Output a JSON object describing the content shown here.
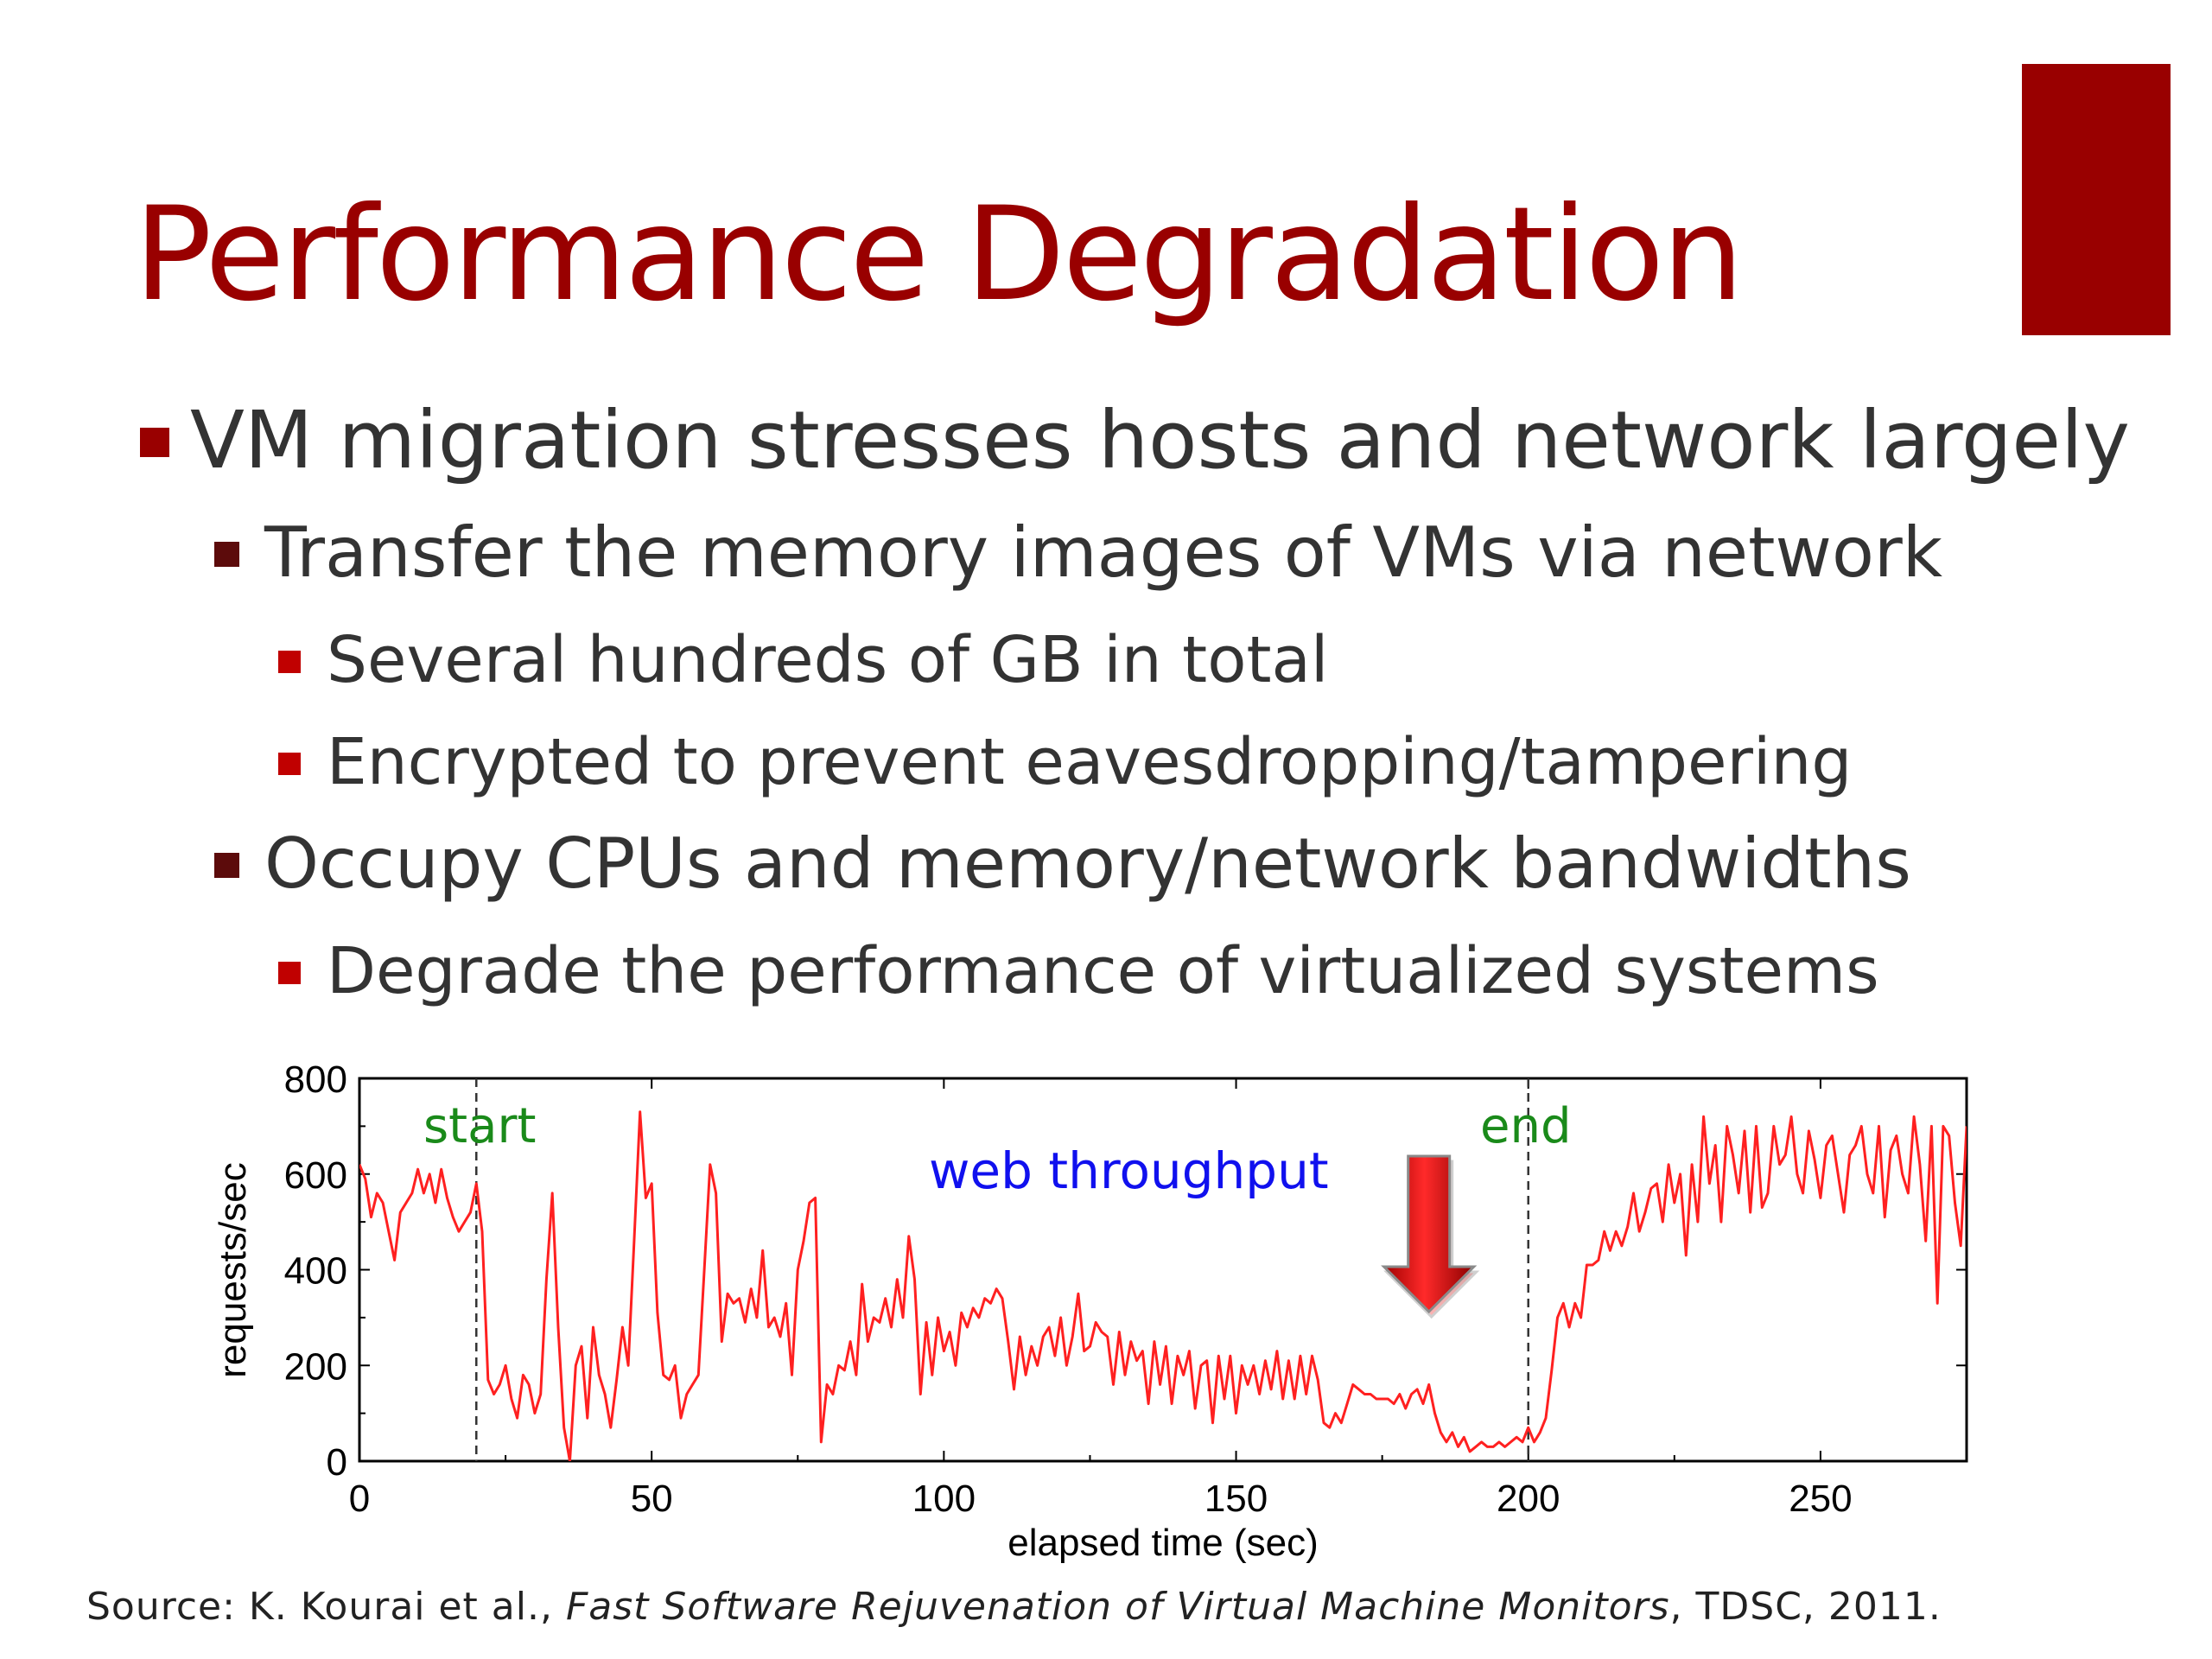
{
  "slide": {
    "title": "Performance Degradation",
    "accent_color": "#990000",
    "bullets": [
      {
        "level": 1,
        "text": "VM migration stresses hosts and network largely"
      },
      {
        "level": 2,
        "text": "Transfer the memory images of VMs via network"
      },
      {
        "level": 3,
        "text": "Several hundreds of GB in total"
      },
      {
        "level": 3,
        "text": "Encrypted to prevent eavesdropping/tampering"
      },
      {
        "level": 2,
        "text": "Occupy CPUs and memory/network bandwidths"
      },
      {
        "level": 3,
        "text": "Degrade the performance of virtualized systems"
      }
    ],
    "source": {
      "prefix": "Source: K. Kourai et al., ",
      "title": "Fast Software Rejuvenation of Virtual Machine Monitors",
      "suffix": ", TDSC, 2011."
    }
  },
  "chart_data": {
    "type": "line",
    "xlabel": "elapsed time (sec)",
    "ylabel": "requests/sec",
    "xlim": [
      0,
      275
    ],
    "ylim": [
      0,
      800
    ],
    "xticks": [
      0,
      50,
      100,
      150,
      200,
      250
    ],
    "yticks": [
      0,
      200,
      400,
      600,
      800
    ],
    "grid": false,
    "line_color": "#ff2020",
    "annotations": [
      {
        "text": "start",
        "x": 20,
        "color": "#1a8a1a"
      },
      {
        "text": "end",
        "x": 200,
        "color": "#1a8a1a"
      },
      {
        "text": "web throughput",
        "color": "#1010ee"
      }
    ],
    "arrow_x": 183,
    "series": [
      {
        "values": [
          [
            0,
            620
          ],
          [
            1,
            590
          ],
          [
            2,
            510
          ],
          [
            3,
            560
          ],
          [
            4,
            540
          ],
          [
            5,
            480
          ],
          [
            6,
            420
          ],
          [
            7,
            520
          ],
          [
            8,
            540
          ],
          [
            9,
            560
          ],
          [
            10,
            610
          ],
          [
            11,
            560
          ],
          [
            12,
            600
          ],
          [
            13,
            540
          ],
          [
            14,
            610
          ],
          [
            15,
            550
          ],
          [
            16,
            510
          ],
          [
            17,
            480
          ],
          [
            18,
            500
          ],
          [
            19,
            520
          ],
          [
            20,
            580
          ],
          [
            21,
            480
          ],
          [
            22,
            170
          ],
          [
            23,
            140
          ],
          [
            24,
            160
          ],
          [
            25,
            200
          ],
          [
            26,
            130
          ],
          [
            27,
            90
          ],
          [
            28,
            180
          ],
          [
            29,
            160
          ],
          [
            30,
            100
          ],
          [
            31,
            140
          ],
          [
            32,
            380
          ],
          [
            33,
            560
          ],
          [
            34,
            280
          ],
          [
            35,
            70
          ],
          [
            36,
            0
          ],
          [
            37,
            200
          ],
          [
            38,
            240
          ],
          [
            39,
            90
          ],
          [
            40,
            280
          ],
          [
            41,
            180
          ],
          [
            42,
            140
          ],
          [
            43,
            70
          ],
          [
            44,
            170
          ],
          [
            45,
            280
          ],
          [
            46,
            200
          ],
          [
            47,
            460
          ],
          [
            48,
            730
          ],
          [
            49,
            550
          ],
          [
            50,
            580
          ],
          [
            51,
            310
          ],
          [
            52,
            180
          ],
          [
            53,
            170
          ],
          [
            54,
            200
          ],
          [
            55,
            90
          ],
          [
            56,
            140
          ],
          [
            57,
            160
          ],
          [
            58,
            180
          ],
          [
            59,
            400
          ],
          [
            60,
            620
          ],
          [
            61,
            560
          ],
          [
            62,
            250
          ],
          [
            63,
            350
          ],
          [
            64,
            330
          ],
          [
            65,
            340
          ],
          [
            66,
            290
          ],
          [
            67,
            360
          ],
          [
            68,
            300
          ],
          [
            69,
            440
          ],
          [
            70,
            280
          ],
          [
            71,
            300
          ],
          [
            72,
            260
          ],
          [
            73,
            330
          ],
          [
            74,
            180
          ],
          [
            75,
            400
          ],
          [
            76,
            460
          ],
          [
            77,
            540
          ],
          [
            78,
            550
          ],
          [
            79,
            40
          ],
          [
            80,
            160
          ],
          [
            81,
            140
          ],
          [
            82,
            200
          ],
          [
            83,
            190
          ],
          [
            84,
            250
          ],
          [
            85,
            180
          ],
          [
            86,
            370
          ],
          [
            87,
            250
          ],
          [
            88,
            300
          ],
          [
            89,
            290
          ],
          [
            90,
            340
          ],
          [
            91,
            280
          ],
          [
            92,
            380
          ],
          [
            93,
            300
          ],
          [
            94,
            470
          ],
          [
            95,
            380
          ],
          [
            96,
            140
          ],
          [
            97,
            290
          ],
          [
            98,
            180
          ],
          [
            99,
            300
          ],
          [
            100,
            230
          ],
          [
            101,
            270
          ],
          [
            102,
            200
          ],
          [
            103,
            310
          ],
          [
            104,
            280
          ],
          [
            105,
            320
          ],
          [
            106,
            300
          ],
          [
            107,
            340
          ],
          [
            108,
            330
          ],
          [
            109,
            360
          ],
          [
            110,
            340
          ],
          [
            111,
            250
          ],
          [
            112,
            150
          ],
          [
            113,
            260
          ],
          [
            114,
            180
          ],
          [
            115,
            240
          ],
          [
            116,
            200
          ],
          [
            117,
            260
          ],
          [
            118,
            280
          ],
          [
            119,
            220
          ],
          [
            120,
            300
          ],
          [
            121,
            200
          ],
          [
            122,
            260
          ],
          [
            123,
            350
          ],
          [
            124,
            230
          ],
          [
            125,
            240
          ],
          [
            126,
            290
          ],
          [
            127,
            270
          ],
          [
            128,
            260
          ],
          [
            129,
            160
          ],
          [
            130,
            270
          ],
          [
            131,
            180
          ],
          [
            132,
            250
          ],
          [
            133,
            210
          ],
          [
            134,
            230
          ],
          [
            135,
            120
          ],
          [
            136,
            250
          ],
          [
            137,
            160
          ],
          [
            138,
            240
          ],
          [
            139,
            120
          ],
          [
            140,
            220
          ],
          [
            141,
            180
          ],
          [
            142,
            230
          ],
          [
            143,
            110
          ],
          [
            144,
            200
          ],
          [
            145,
            210
          ],
          [
            146,
            80
          ],
          [
            147,
            220
          ],
          [
            148,
            130
          ],
          [
            149,
            220
          ],
          [
            150,
            100
          ],
          [
            151,
            200
          ],
          [
            152,
            160
          ],
          [
            153,
            200
          ],
          [
            154,
            140
          ],
          [
            155,
            210
          ],
          [
            156,
            150
          ],
          [
            157,
            230
          ],
          [
            158,
            130
          ],
          [
            159,
            210
          ],
          [
            160,
            130
          ],
          [
            161,
            220
          ],
          [
            162,
            140
          ],
          [
            163,
            220
          ],
          [
            164,
            170
          ],
          [
            165,
            80
          ],
          [
            166,
            70
          ],
          [
            167,
            100
          ],
          [
            168,
            80
          ],
          [
            169,
            120
          ],
          [
            170,
            160
          ],
          [
            171,
            150
          ],
          [
            172,
            140
          ],
          [
            173,
            140
          ],
          [
            174,
            130
          ],
          [
            175,
            130
          ],
          [
            176,
            130
          ],
          [
            177,
            120
          ],
          [
            178,
            140
          ],
          [
            179,
            110
          ],
          [
            180,
            140
          ],
          [
            181,
            150
          ],
          [
            182,
            120
          ],
          [
            183,
            160
          ],
          [
            184,
            100
          ],
          [
            185,
            60
          ],
          [
            186,
            40
          ],
          [
            187,
            60
          ],
          [
            188,
            30
          ],
          [
            189,
            50
          ],
          [
            190,
            20
          ],
          [
            191,
            30
          ],
          [
            192,
            40
          ],
          [
            193,
            30
          ],
          [
            194,
            30
          ],
          [
            195,
            40
          ],
          [
            196,
            30
          ],
          [
            197,
            40
          ],
          [
            198,
            50
          ],
          [
            199,
            40
          ],
          [
            200,
            70
          ],
          [
            201,
            40
          ],
          [
            202,
            60
          ],
          [
            203,
            90
          ],
          [
            204,
            190
          ],
          [
            205,
            300
          ],
          [
            206,
            330
          ],
          [
            207,
            280
          ],
          [
            208,
            330
          ],
          [
            209,
            300
          ],
          [
            210,
            410
          ],
          [
            211,
            410
          ],
          [
            212,
            420
          ],
          [
            213,
            480
          ],
          [
            214,
            440
          ],
          [
            215,
            480
          ],
          [
            216,
            450
          ],
          [
            217,
            490
          ],
          [
            218,
            560
          ],
          [
            219,
            480
          ],
          [
            220,
            520
          ],
          [
            221,
            570
          ],
          [
            222,
            580
          ],
          [
            223,
            500
          ],
          [
            224,
            620
          ],
          [
            225,
            540
          ],
          [
            226,
            600
          ],
          [
            227,
            430
          ],
          [
            228,
            620
          ],
          [
            229,
            500
          ],
          [
            230,
            720
          ],
          [
            231,
            580
          ],
          [
            232,
            660
          ],
          [
            233,
            500
          ],
          [
            234,
            700
          ],
          [
            235,
            640
          ],
          [
            236,
            560
          ],
          [
            237,
            690
          ],
          [
            238,
            520
          ],
          [
            239,
            700
          ],
          [
            240,
            530
          ],
          [
            241,
            560
          ],
          [
            242,
            700
          ],
          [
            243,
            620
          ],
          [
            244,
            640
          ],
          [
            245,
            720
          ],
          [
            246,
            600
          ],
          [
            247,
            560
          ],
          [
            248,
            690
          ],
          [
            249,
            630
          ],
          [
            250,
            550
          ],
          [
            251,
            660
          ],
          [
            252,
            680
          ],
          [
            253,
            600
          ],
          [
            254,
            520
          ],
          [
            255,
            640
          ],
          [
            256,
            660
          ],
          [
            257,
            700
          ],
          [
            258,
            600
          ],
          [
            259,
            560
          ],
          [
            260,
            700
          ],
          [
            261,
            510
          ],
          [
            262,
            650
          ],
          [
            263,
            680
          ],
          [
            264,
            600
          ],
          [
            265,
            560
          ],
          [
            266,
            720
          ],
          [
            267,
            620
          ],
          [
            268,
            460
          ],
          [
            269,
            700
          ],
          [
            270,
            330
          ],
          [
            271,
            700
          ],
          [
            272,
            680
          ],
          [
            273,
            540
          ],
          [
            274,
            450
          ],
          [
            275,
            700
          ]
        ]
      }
    ]
  }
}
